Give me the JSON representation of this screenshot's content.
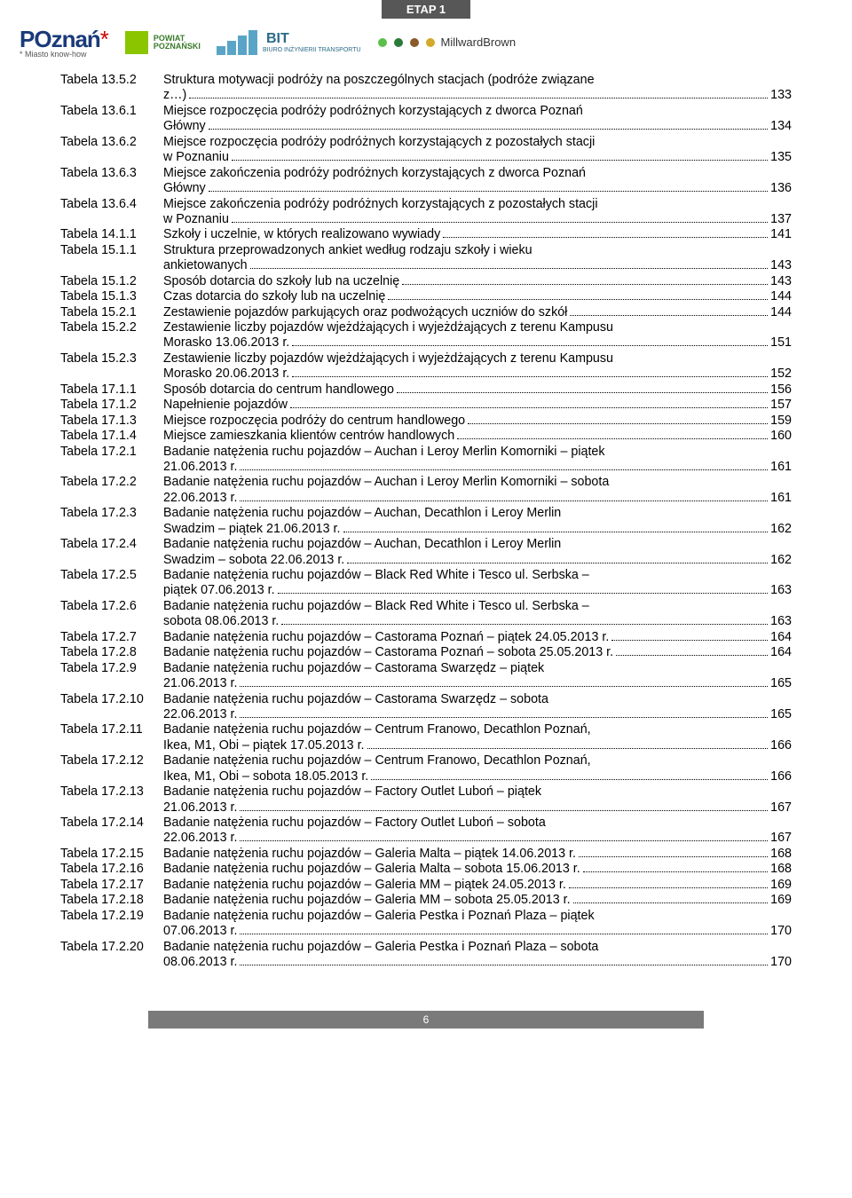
{
  "banner": "ETAP 1",
  "logos": {
    "poznan": {
      "text": "POznań",
      "sub": "* Miasto know-how"
    },
    "powiat": {
      "line1": "POWIAT",
      "line2": "POZNAŃSKI"
    },
    "bit": {
      "text": "BIT",
      "sub": "BIURO INŻYNIERII TRANSPORTU"
    },
    "mb": {
      "text": "MillwardBrown"
    }
  },
  "footer": "6",
  "entries": [
    {
      "label": "Tabela 13.5.2",
      "lines": [
        {
          "text": "Struktura motywacji podróży na poszczególnych stacjach (podróże związane"
        },
        {
          "text": "z…)",
          "page": "133"
        }
      ]
    },
    {
      "label": "Tabela 13.6.1",
      "lines": [
        {
          "text": "Miejsce rozpoczęcia podróży podróżnych korzystających z dworca Poznań"
        },
        {
          "text": "Główny",
          "page": "134"
        }
      ]
    },
    {
      "label": "Tabela 13.6.2",
      "lines": [
        {
          "text": "Miejsce rozpoczęcia podróży podróżnych korzystających z pozostałych stacji"
        },
        {
          "text": "w Poznaniu",
          "page": "135"
        }
      ]
    },
    {
      "label": "Tabela 13.6.3",
      "lines": [
        {
          "text": "Miejsce zakończenia podróży podróżnych korzystających z dworca Poznań"
        },
        {
          "text": "Główny",
          "page": "136"
        }
      ]
    },
    {
      "label": "Tabela 13.6.4",
      "lines": [
        {
          "text": "Miejsce zakończenia podróży podróżnych korzystających z pozostałych stacji"
        },
        {
          "text": "w Poznaniu",
          "page": "137"
        }
      ]
    },
    {
      "label": "Tabela 14.1.1",
      "lines": [
        {
          "text": "Szkoły i uczelnie, w których realizowano wywiady",
          "page": "141"
        }
      ]
    },
    {
      "label": "Tabela 15.1.1",
      "lines": [
        {
          "text": "Struktura przeprowadzonych ankiet według rodzaju szkoły i wieku"
        },
        {
          "text": "ankietowanych",
          "page": "143"
        }
      ]
    },
    {
      "label": "Tabela 15.1.2",
      "lines": [
        {
          "text": "Sposób dotarcia do szkoły lub na uczelnię",
          "page": "143"
        }
      ]
    },
    {
      "label": "Tabela 15.1.3",
      "lines": [
        {
          "text": "Czas dotarcia do szkoły lub na uczelnię",
          "page": "144"
        }
      ]
    },
    {
      "label": "Tabela 15.2.1",
      "lines": [
        {
          "text": "Zestawienie pojazdów parkujących oraz podwożących uczniów do szkół",
          "page": "144"
        }
      ]
    },
    {
      "label": "Tabela 15.2.2",
      "lines": [
        {
          "text": "Zestawienie liczby pojazdów wjeżdżających i wyjeżdżających z terenu Kampusu"
        },
        {
          "text": "Morasko 13.06.2013 r.",
          "page": "151"
        }
      ]
    },
    {
      "label": "Tabela 15.2.3",
      "lines": [
        {
          "text": "Zestawienie liczby pojazdów wjeżdżających i wyjeżdżających z terenu Kampusu"
        },
        {
          "text": "Morasko 20.06.2013 r.",
          "page": "152"
        }
      ]
    },
    {
      "label": "Tabela 17.1.1",
      "lines": [
        {
          "text": "Sposób dotarcia do centrum handlowego",
          "page": "156"
        }
      ]
    },
    {
      "label": "Tabela 17.1.2",
      "lines": [
        {
          "text": "Napełnienie pojazdów",
          "page": "157"
        }
      ]
    },
    {
      "label": "Tabela 17.1.3",
      "lines": [
        {
          "text": "Miejsce rozpoczęcia podróży do centrum handlowego",
          "page": "159"
        }
      ]
    },
    {
      "label": "Tabela 17.1.4",
      "lines": [
        {
          "text": "Miejsce zamieszkania klientów centrów handlowych",
          "page": "160"
        }
      ]
    },
    {
      "label": "Tabela 17.2.1",
      "lines": [
        {
          "text": "Badanie natężenia ruchu pojazdów – Auchan i Leroy Merlin Komorniki – piątek"
        },
        {
          "text": "21.06.2013 r.",
          "page": "161"
        }
      ]
    },
    {
      "label": "Tabela 17.2.2",
      "lines": [
        {
          "text": "Badanie natężenia ruchu pojazdów – Auchan i Leroy Merlin Komorniki – sobota"
        },
        {
          "text": "22.06.2013 r.",
          "page": "161"
        }
      ]
    },
    {
      "label": "Tabela 17.2.3",
      "lines": [
        {
          "text": "Badanie natężenia ruchu pojazdów – Auchan, Decathlon i Leroy Merlin"
        },
        {
          "text": "Swadzim – piątek 21.06.2013 r.",
          "page": "162"
        }
      ]
    },
    {
      "label": "Tabela 17.2.4",
      "lines": [
        {
          "text": "Badanie natężenia ruchu pojazdów – Auchan, Decathlon i Leroy Merlin"
        },
        {
          "text": "Swadzim – sobota 22.06.2013 r.",
          "page": "162"
        }
      ]
    },
    {
      "label": "Tabela 17.2.5",
      "lines": [
        {
          "text": "Badanie natężenia ruchu pojazdów – Black Red White i Tesco ul. Serbska –"
        },
        {
          "text": "piątek 07.06.2013 r.",
          "page": "163"
        }
      ]
    },
    {
      "label": "Tabela 17.2.6",
      "lines": [
        {
          "text": "Badanie natężenia ruchu pojazdów – Black Red White i Tesco ul. Serbska –"
        },
        {
          "text": "sobota 08.06.2013 r.",
          "page": "163"
        }
      ]
    },
    {
      "label": "Tabela 17.2.7",
      "lines": [
        {
          "text": "Badanie natężenia ruchu pojazdów – Castorama Poznań – piątek 24.05.2013 r.",
          "page": "164"
        }
      ]
    },
    {
      "label": "Tabela 17.2.8",
      "lines": [
        {
          "text": "Badanie natężenia ruchu pojazdów – Castorama Poznań – sobota 25.05.2013 r.",
          "page": "164",
          "tight": true
        }
      ]
    },
    {
      "label": "Tabela 17.2.9",
      "lines": [
        {
          "text": "Badanie natężenia ruchu pojazdów – Castorama Swarzędz – piątek"
        },
        {
          "text": "21.06.2013 r.",
          "page": "165"
        }
      ]
    },
    {
      "label": "Tabela 17.2.10",
      "lines": [
        {
          "text": "Badanie natężenia ruchu pojazdów – Castorama Swarzędz – sobota"
        },
        {
          "text": "22.06.2013 r.",
          "page": "165"
        }
      ]
    },
    {
      "label": "Tabela 17.2.11",
      "lines": [
        {
          "text": "Badanie natężenia ruchu pojazdów – Centrum Franowo, Decathlon Poznań,"
        },
        {
          "text": "Ikea, M1, Obi – piątek 17.05.2013 r.",
          "page": "166"
        }
      ]
    },
    {
      "label": "Tabela 17.2.12",
      "lines": [
        {
          "text": "Badanie natężenia ruchu pojazdów – Centrum Franowo, Decathlon Poznań,"
        },
        {
          "text": "Ikea, M1, Obi – sobota 18.05.2013 r.",
          "page": "166"
        }
      ]
    },
    {
      "label": "Tabela 17.2.13",
      "lines": [
        {
          "text": "Badanie natężenia ruchu pojazdów – Factory Outlet Luboń – piątek"
        },
        {
          "text": "21.06.2013 r.",
          "page": "167"
        }
      ]
    },
    {
      "label": "Tabela 17.2.14",
      "lines": [
        {
          "text": "Badanie natężenia ruchu pojazdów – Factory Outlet Luboń – sobota"
        },
        {
          "text": "22.06.2013 r.",
          "page": "167"
        }
      ]
    },
    {
      "label": "Tabela 17.2.15",
      "lines": [
        {
          "text": "Badanie natężenia ruchu pojazdów – Galeria Malta – piątek 14.06.2013 r.",
          "page": "168"
        }
      ]
    },
    {
      "label": "Tabela 17.2.16",
      "lines": [
        {
          "text": "Badanie natężenia ruchu pojazdów – Galeria Malta – sobota 15.06.2013 r.",
          "page": "168"
        }
      ]
    },
    {
      "label": "Tabela 17.2.17",
      "lines": [
        {
          "text": "Badanie natężenia ruchu pojazdów – Galeria MM – piątek 24.05.2013 r.",
          "page": "169"
        }
      ]
    },
    {
      "label": "Tabela 17.2.18",
      "lines": [
        {
          "text": "Badanie natężenia ruchu pojazdów – Galeria MM – sobota 25.05.2013 r.",
          "page": "169"
        }
      ]
    },
    {
      "label": "Tabela 17.2.19",
      "lines": [
        {
          "text": "Badanie natężenia ruchu pojazdów – Galeria Pestka i Poznań Plaza – piątek"
        },
        {
          "text": "07.06.2013 r.",
          "page": "170"
        }
      ]
    },
    {
      "label": "Tabela 17.2.20",
      "lines": [
        {
          "text": "Badanie natężenia ruchu pojazdów – Galeria Pestka i Poznań Plaza – sobota"
        },
        {
          "text": "08.06.2013 r.",
          "page": "170"
        }
      ]
    }
  ]
}
